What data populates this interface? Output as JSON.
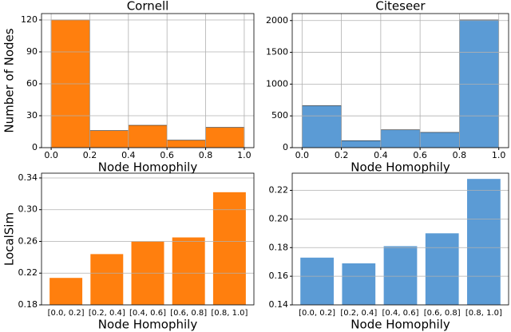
{
  "chart_data": [
    {
      "type": "histogram",
      "title": "Cornell",
      "xlabel": "Node Homophily",
      "ylabel": "Number of Nodes",
      "bins": [
        0,
        0.2,
        0.4,
        0.6,
        0.8,
        1
      ],
      "values": [
        120,
        16,
        21,
        7,
        19
      ],
      "color": "#ff7f0e",
      "xlim": [
        -0.05,
        1.05
      ],
      "xticks": [
        {
          "value": 0,
          "label": "0.0"
        },
        0.2,
        0.4,
        0.6,
        0.8,
        {
          "value": 1,
          "label": "1.0"
        }
      ],
      "ylim": [
        0,
        126
      ],
      "yticks": [
        0,
        30,
        60,
        90,
        120
      ],
      "grid": true
    },
    {
      "type": "histogram",
      "title": "Citeseer",
      "xlabel": "Node Homophily",
      "bins": [
        0,
        0.2,
        0.4,
        0.6,
        0.8,
        1
      ],
      "values": [
        660,
        110,
        280,
        240,
        2010
      ],
      "color": "#5b9bd5",
      "xlim": [
        -0.05,
        1.05
      ],
      "xticks": [
        {
          "value": 0,
          "label": "0.0"
        },
        0.2,
        0.4,
        0.6,
        0.8,
        {
          "value": 1,
          "label": "1.0"
        }
      ],
      "ylim": [
        0,
        2110
      ],
      "yticks": [
        0,
        500,
        1000,
        1500,
        2000
      ],
      "grid": true
    },
    {
      "type": "bar",
      "xlabel": "Node Homophily",
      "ylabel": "LocalSim",
      "categories": [
        "[0.0, 0.2]",
        "[0.2, 0.4]",
        "[0.4, 0.6]",
        "[0.6, 0.8]",
        "[0.8, 1.0]"
      ],
      "values": [
        0.214,
        0.244,
        0.26,
        0.265,
        0.322
      ],
      "color": "#ff7f0e",
      "ylim": [
        0.18,
        0.346
      ],
      "yticks": [
        0.18,
        0.22,
        0.26,
        {
          "value": 0.3,
          "label": "0.30"
        },
        0.34
      ],
      "grid": true
    },
    {
      "type": "bar",
      "xlabel": "Node Homophily",
      "categories": [
        "[0.0, 0.2]",
        "[0.2, 0.4]",
        "[0.4, 0.6]",
        "[0.6, 0.8]",
        "[0.8, 1.0]"
      ],
      "values": [
        0.173,
        0.169,
        0.181,
        0.19,
        0.228
      ],
      "color": "#5b9bd5",
      "ylim": [
        0.14,
        0.232
      ],
      "yticks": [
        0.14,
        0.16,
        0.18,
        {
          "value": 0.2,
          "label": "0.20"
        },
        0.22
      ],
      "grid": true
    }
  ]
}
